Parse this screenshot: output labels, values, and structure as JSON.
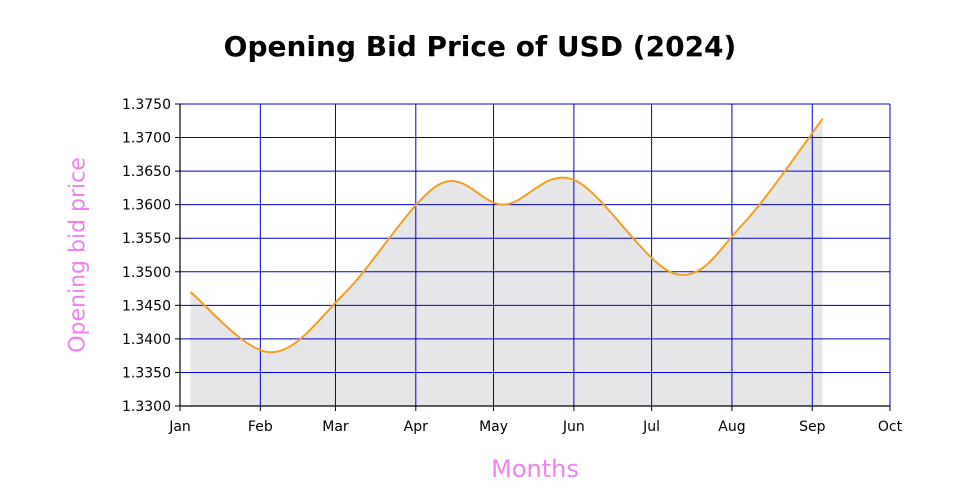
{
  "chart_data": {
    "type": "area",
    "title": "Opening Bid Price of USD (2024)",
    "xlabel": "Months",
    "ylabel": "Opening bid price",
    "x_ticks": [
      "Jan",
      "Feb",
      "Mar",
      "Apr",
      "May",
      "Jun",
      "Jul",
      "Aug",
      "Sep",
      "Oct"
    ],
    "y_ticks": [
      "1.3300",
      "1.3350",
      "1.3400",
      "1.3450",
      "1.3500",
      "1.3550",
      "1.3600",
      "1.3650",
      "1.3700",
      "1.3750"
    ],
    "xlim": [
      "2024-01-01",
      "2024-10-01"
    ],
    "ylim": [
      1.33,
      1.375
    ],
    "grid": true,
    "colors": {
      "line": "#f0a020",
      "fill": "#e6e6e8",
      "grid": "#0000cc"
    },
    "series": [
      {
        "x": [
          "2024-01-05",
          "2024-02-05",
          "2024-03-05",
          "2024-04-10",
          "2024-05-05",
          "2024-06-01",
          "2024-07-10",
          "2024-08-05",
          "2024-09-05"
        ],
        "values": [
          1.347,
          1.338,
          1.347,
          1.363,
          1.36,
          1.3637,
          1.3497,
          1.357,
          1.3728
        ]
      }
    ]
  }
}
